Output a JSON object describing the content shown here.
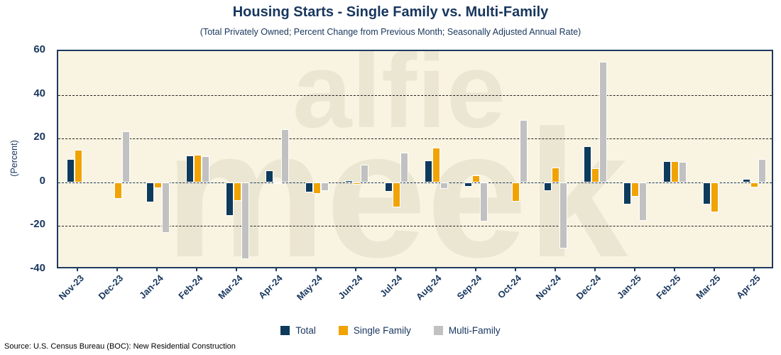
{
  "watermark": {
    "line1": "alfie",
    "line2": "meek"
  },
  "chart_data": {
    "type": "bar",
    "title": "Housing Starts - Single Family vs. Multi-Family",
    "subtitle": "(Total Privately Owned; Percent Change from Previous Month; Seasonally Adjusted Annual Rate)",
    "ylabel": "(Percent)",
    "source": "Source: U.S. Census Bureau (BOC): New Residential Construction",
    "ylim": [
      -40,
      60
    ],
    "yticks": [
      60,
      40,
      20,
      0,
      -20,
      -40
    ],
    "gridlines": [
      40,
      20,
      0,
      -20
    ],
    "grid_style": "dashed",
    "legend_position": "bottom-center",
    "plot_bg_color": "#F9F4E2",
    "axis_color": "#1F3A5F",
    "categories": [
      "Nov-23",
      "Dec-23",
      "Jan-24",
      "Feb-24",
      "Mar-24",
      "Apr-24",
      "May-24",
      "Jun-24",
      "Jul-24",
      "Aug-24",
      "Sep-24",
      "Oct-24",
      "Nov-24",
      "Dec-24",
      "Jan-25",
      "Feb-25",
      "Mar-25",
      "Apr-25"
    ],
    "series": [
      {
        "name": "Total",
        "color": "#0E3A5C",
        "values": [
          10.7,
          0,
          -9.0,
          12.2,
          -15.2,
          5.3,
          -4.6,
          1.0,
          -4.4,
          9.9,
          -2.0,
          0,
          -4.1,
          16.4,
          -10.1,
          9.6,
          -10.1,
          1.4
        ]
      },
      {
        "name": "Single Family",
        "color": "#F0A302",
        "values": [
          14.8,
          -7.4,
          -2.8,
          12.5,
          -8.4,
          -0.8,
          -5.4,
          -1.2,
          -11.3,
          15.7,
          3.2,
          -8.8,
          6.9,
          6.4,
          -6.6,
          9.6,
          -13.8,
          -2.3
        ]
      },
      {
        "name": "Multi-Family",
        "color": "#C2C1C1",
        "values": [
          0,
          23.4,
          -23.2,
          11.8,
          -35.2,
          24.2,
          -3.8,
          8.2,
          13.7,
          -2.9,
          -17.8,
          28.6,
          -30.1,
          55.1,
          -17.6,
          9.4,
          0,
          10.5
        ]
      }
    ]
  }
}
